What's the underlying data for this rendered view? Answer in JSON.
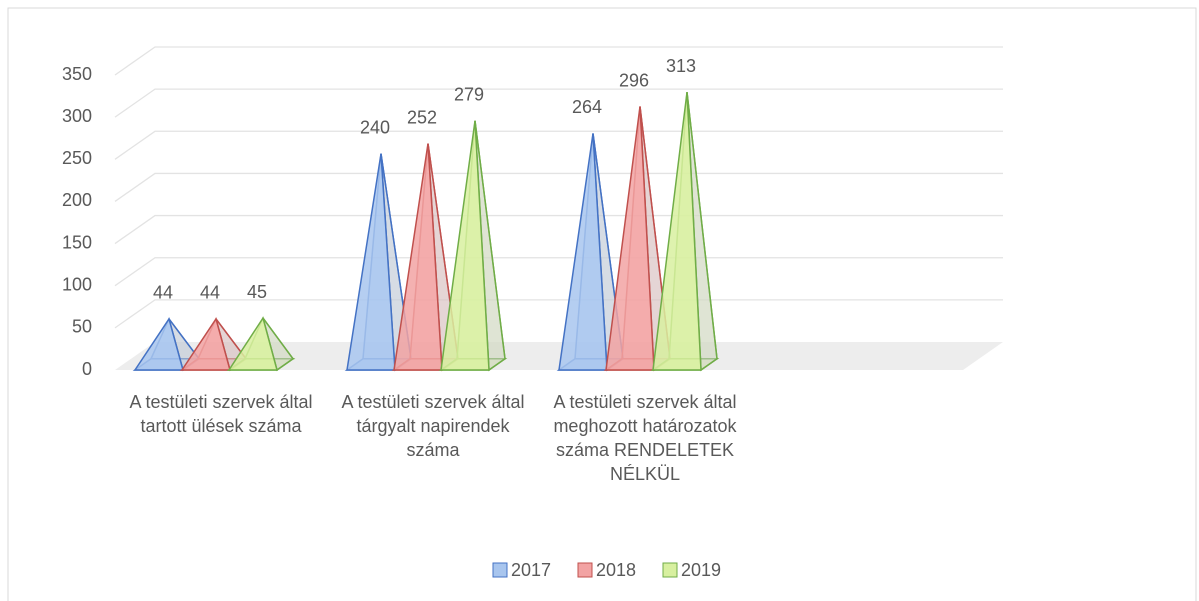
{
  "chart_data": {
    "type": "pyramid3d",
    "categories": [
      "A testületi szervek által tartott ülések száma",
      "A testületi szervek által tárgyalt napirendek száma",
      "A testületi szervek által meghozott határozatok száma RENDELETEK NÉLKÜL"
    ],
    "series": [
      {
        "name": "2017",
        "color": "#4472c4",
        "fill": "#a8c5ee",
        "values": [
          44,
          240,
          264
        ]
      },
      {
        "name": "2018",
        "color": "#c0504d",
        "fill": "#f2a3a3",
        "values": [
          44,
          252,
          296
        ]
      },
      {
        "name": "2019",
        "color": "#70ad47",
        "fill": "#d8f0a0",
        "values": [
          45,
          279,
          313
        ]
      }
    ],
    "ylim": [
      0,
      350
    ],
    "yticks": [
      0,
      50,
      100,
      150,
      200,
      250,
      300,
      350
    ],
    "grid": true,
    "legend": "bottom"
  }
}
